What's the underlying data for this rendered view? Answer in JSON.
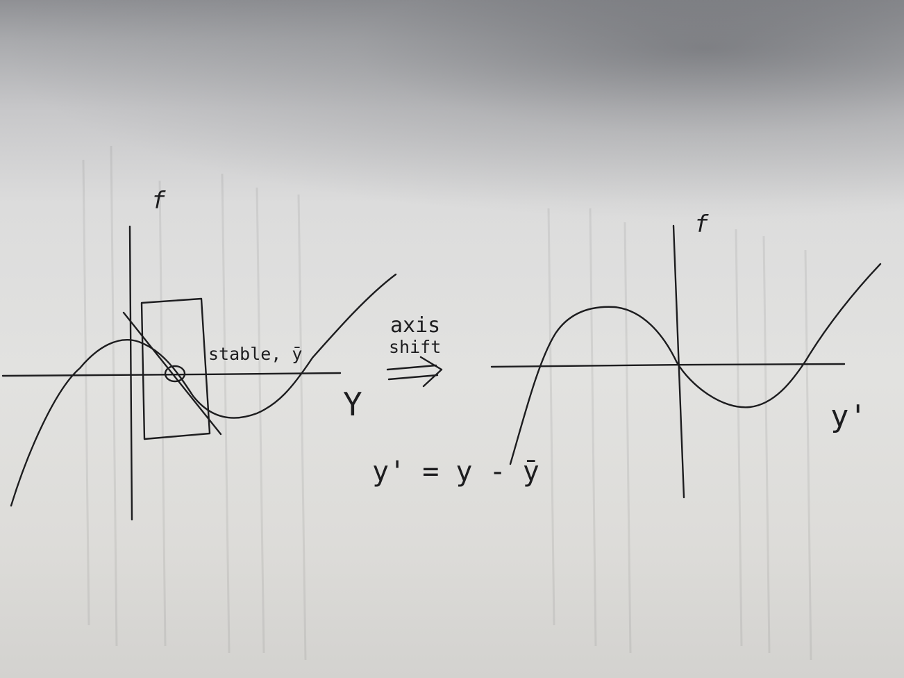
{
  "left_plot": {
    "vertical_axis_label": "f",
    "horizontal_axis_label": "Y",
    "annotation": "stable, ȳ"
  },
  "middle": {
    "arrow_label_line1": "axis",
    "arrow_label_line2": "shift",
    "equation": "y' = y - ȳ"
  },
  "right_plot": {
    "vertical_axis_label": "f",
    "horizontal_axis_label": "y'"
  }
}
